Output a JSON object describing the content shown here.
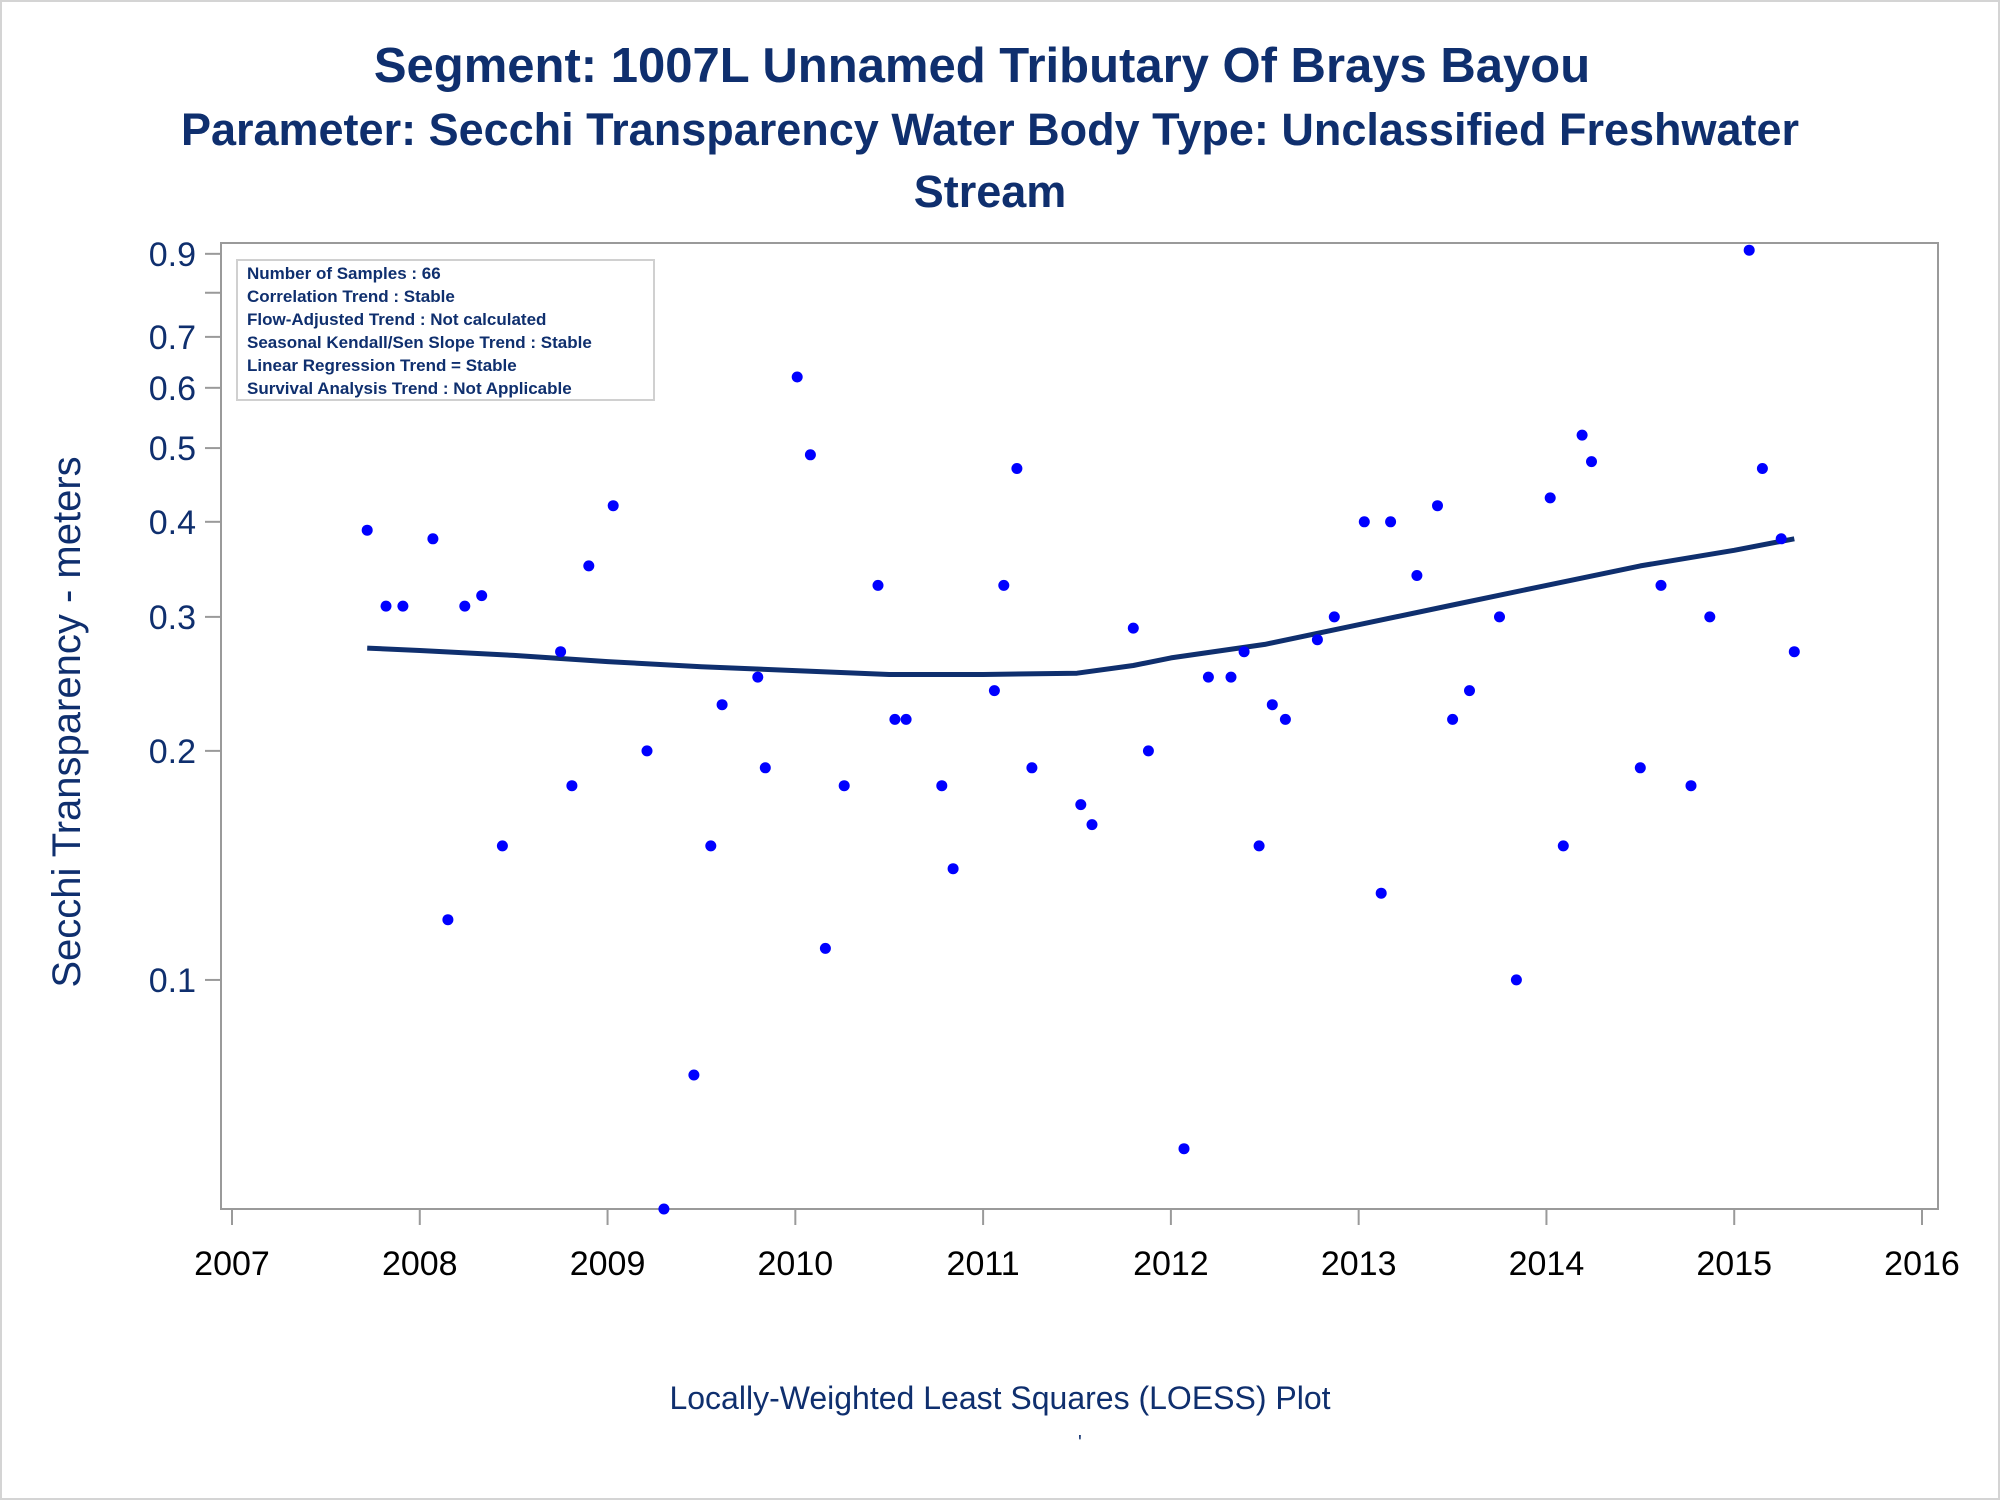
{
  "titles": {
    "line1": "Segment: 1007L  Unnamed Tributary Of Brays Bayou",
    "line2": "Parameter: Secchi Transparency   Water Body Type: Unclassified Freshwater",
    "line3": "Stream"
  },
  "footnote": "Locally-Weighted Least Squares (LOESS) Plot",
  "footnote_mark": "'",
  "colors": {
    "text": "#0f2f6e",
    "points": "#0000ff",
    "line": "#0f2f6e",
    "axis": "#9a9a9a"
  },
  "legend_box": [
    "Number of Samples : 66",
    "Correlation Trend : Stable",
    "Flow-Adjusted Trend : Not calculated",
    "Seasonal Kendall/Sen Slope Trend : Stable",
    "Linear Regression Trend = Stable",
    "Survival Analysis Trend : Not Applicable"
  ],
  "chart_data": {
    "type": "scatter",
    "ylabel": "Secchi Transparency - meters",
    "yscale": "log",
    "xlim": [
      2007,
      2016
    ],
    "ylim": [
      0.05,
      0.93
    ],
    "xticks": [
      "2007",
      "2008",
      "2009",
      "2010",
      "2011",
      "2012",
      "2013",
      "2014",
      "2015",
      "2016"
    ],
    "yticks": [
      "0.1",
      "0.2",
      "0.3",
      "0.4",
      "0.5",
      "0.6",
      "0.7",
      "0.9"
    ],
    "yticks_values": [
      0.1,
      0.2,
      0.3,
      0.4,
      0.5,
      0.6,
      0.7,
      0.9
    ],
    "series": [
      {
        "type": "scatter",
        "points": [
          [
            2007.72,
            0.39
          ],
          [
            2007.82,
            0.31
          ],
          [
            2007.91,
            0.31
          ],
          [
            2008.07,
            0.38
          ],
          [
            2008.15,
            0.12
          ],
          [
            2008.24,
            0.31
          ],
          [
            2008.33,
            0.32
          ],
          [
            2008.44,
            0.15
          ],
          [
            2008.75,
            0.27
          ],
          [
            2008.81,
            0.18
          ],
          [
            2008.9,
            0.35
          ],
          [
            2009.03,
            0.42
          ],
          [
            2009.21,
            0.2
          ],
          [
            2009.3,
            0.05
          ],
          [
            2009.46,
            0.075
          ],
          [
            2009.55,
            0.15
          ],
          [
            2009.61,
            0.23
          ],
          [
            2009.8,
            0.25
          ],
          [
            2009.84,
            0.19
          ],
          [
            2010.01,
            0.62
          ],
          [
            2010.08,
            0.49
          ],
          [
            2010.16,
            0.11
          ],
          [
            2010.26,
            0.18
          ],
          [
            2010.44,
            0.33
          ],
          [
            2010.53,
            0.22
          ],
          [
            2010.59,
            0.22
          ],
          [
            2010.78,
            0.18
          ],
          [
            2010.84,
            0.14
          ],
          [
            2011.06,
            0.24
          ],
          [
            2011.11,
            0.33
          ],
          [
            2011.18,
            0.47
          ],
          [
            2011.26,
            0.19
          ],
          [
            2011.52,
            0.17
          ],
          [
            2011.58,
            0.16
          ],
          [
            2011.8,
            0.29
          ],
          [
            2011.88,
            0.2
          ],
          [
            2012.07,
            0.06
          ],
          [
            2012.2,
            0.25
          ],
          [
            2012.32,
            0.25
          ],
          [
            2012.39,
            0.27
          ],
          [
            2012.47,
            0.15
          ],
          [
            2012.54,
            0.23
          ],
          [
            2012.61,
            0.22
          ],
          [
            2012.78,
            0.28
          ],
          [
            2012.87,
            0.3
          ],
          [
            2013.03,
            0.4
          ],
          [
            2013.12,
            0.13
          ],
          [
            2013.17,
            0.4
          ],
          [
            2013.31,
            0.34
          ],
          [
            2013.42,
            0.42
          ],
          [
            2013.5,
            0.22
          ],
          [
            2013.59,
            0.24
          ],
          [
            2013.75,
            0.3
          ],
          [
            2013.84,
            0.1
          ],
          [
            2014.02,
            0.43
          ],
          [
            2014.09,
            0.15
          ],
          [
            2014.19,
            0.52
          ],
          [
            2014.24,
            0.48
          ],
          [
            2014.5,
            0.19
          ],
          [
            2014.61,
            0.33
          ],
          [
            2014.77,
            0.18
          ],
          [
            2014.87,
            0.3
          ],
          [
            2015.08,
            0.91
          ],
          [
            2015.15,
            0.47
          ],
          [
            2015.25,
            0.38
          ],
          [
            2015.32,
            0.27
          ]
        ]
      },
      {
        "type": "line",
        "points": [
          [
            2007.72,
            0.273
          ],
          [
            2008.0,
            0.271
          ],
          [
            2008.5,
            0.267
          ],
          [
            2009.0,
            0.262
          ],
          [
            2009.5,
            0.258
          ],
          [
            2010.0,
            0.255
          ],
          [
            2010.5,
            0.252
          ],
          [
            2011.0,
            0.252
          ],
          [
            2011.5,
            0.253
          ],
          [
            2011.8,
            0.259
          ],
          [
            2012.0,
            0.265
          ],
          [
            2012.5,
            0.276
          ],
          [
            2013.0,
            0.293
          ],
          [
            2013.5,
            0.311
          ],
          [
            2014.0,
            0.33
          ],
          [
            2014.5,
            0.35
          ],
          [
            2015.0,
            0.367
          ],
          [
            2015.32,
            0.38
          ]
        ]
      }
    ]
  }
}
